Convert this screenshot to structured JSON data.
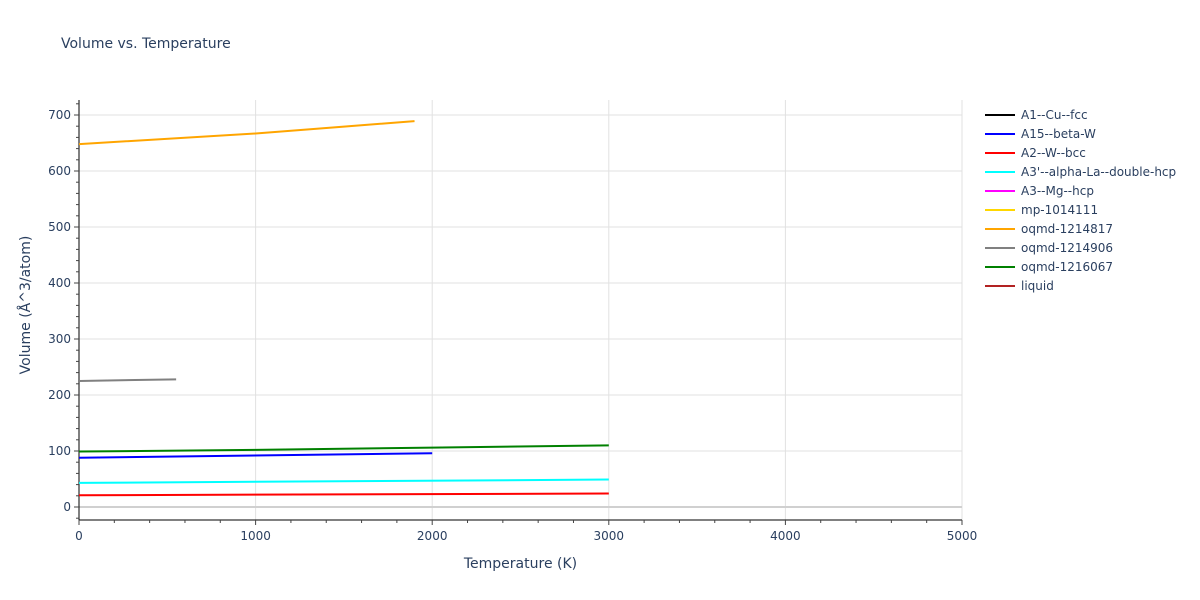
{
  "chart_data": {
    "type": "line",
    "title": "Volume vs. Temperature",
    "xlabel": "Temperature (K)",
    "ylabel": "Volume (Å^3/atom)",
    "xlim": [
      0,
      5000
    ],
    "ylim": [
      -20,
      725
    ],
    "x_ticks": [
      0,
      1000,
      2000,
      3000,
      4000,
      5000
    ],
    "y_ticks": [
      0,
      100,
      200,
      300,
      400,
      500,
      600,
      700
    ],
    "grid": true,
    "legend_position": "right",
    "series": [
      {
        "name": "A1--Cu--fcc",
        "color": "#000000",
        "x": [],
        "y": []
      },
      {
        "name": "A15--beta-W",
        "color": "#0000ff",
        "x": [
          0,
          2000
        ],
        "y": [
          88,
          96
        ]
      },
      {
        "name": "A2--W--bcc",
        "color": "#ff0000",
        "x": [
          0,
          3000
        ],
        "y": [
          21,
          24
        ]
      },
      {
        "name": "A3'--alpha-La--double-hcp",
        "color": "#00ffff",
        "x": [
          0,
          3000
        ],
        "y": [
          43,
          49
        ]
      },
      {
        "name": "A3--Mg--hcp",
        "color": "#ff00ff",
        "x": [],
        "y": []
      },
      {
        "name": "mp-1014111",
        "color": "#ffd700",
        "x": [],
        "y": []
      },
      {
        "name": "oqmd-1214817",
        "color": "#ffa500",
        "x": [
          0,
          1000,
          1900
        ],
        "y": [
          648,
          667,
          689
        ]
      },
      {
        "name": "oqmd-1214906",
        "color": "#808080",
        "x": [
          0,
          550
        ],
        "y": [
          225,
          228
        ]
      },
      {
        "name": "oqmd-1216067",
        "color": "#008000",
        "x": [
          0,
          1000,
          2000,
          3000
        ],
        "y": [
          99,
          102,
          106,
          110
        ]
      },
      {
        "name": "liquid",
        "color": "#b22222",
        "x": [],
        "y": []
      }
    ]
  }
}
